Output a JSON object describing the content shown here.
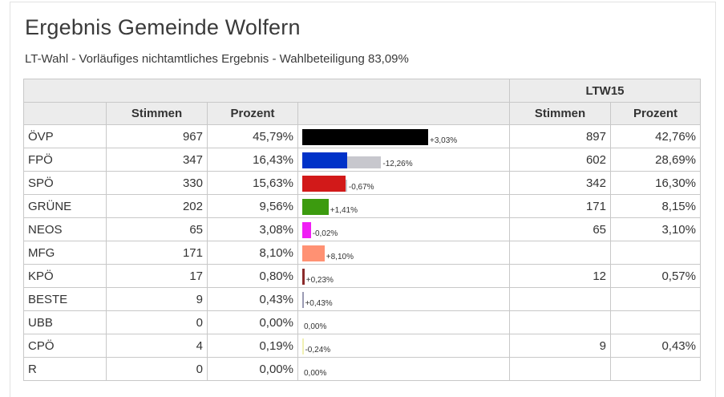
{
  "title": "Ergebnis Gemeinde Wolfern",
  "subtitle": "LT-Wahl - Vorläufiges nichtamtliches Ergebnis - Wahlbeteiligung 83,09%",
  "table": {
    "group_header": "LTW15",
    "headers": {
      "stimmen": "Stimmen",
      "prozent": "Prozent",
      "prev_stimmen": "Stimmen",
      "prev_prozent": "Prozent"
    },
    "rows": [
      {
        "party": "ÖVP",
        "stimmen": "967",
        "prozent": "45,79%",
        "delta": "+3,03%",
        "prev_stimmen": "897",
        "prev_prozent": "42,76%",
        "color": "#000000",
        "pct": 45.79,
        "prev_pct": 42.76
      },
      {
        "party": "FPÖ",
        "stimmen": "347",
        "prozent": "16,43%",
        "delta": "-12,26%",
        "prev_stimmen": "602",
        "prev_prozent": "28,69%",
        "color": "#0032c8",
        "pct": 16.43,
        "prev_pct": 28.69
      },
      {
        "party": "SPÖ",
        "stimmen": "330",
        "prozent": "15,63%",
        "delta": "-0,67%",
        "prev_stimmen": "342",
        "prev_prozent": "16,30%",
        "color": "#d21919",
        "pct": 15.63,
        "prev_pct": 16.3
      },
      {
        "party": "GRÜNE",
        "stimmen": "202",
        "prozent": "9,56%",
        "delta": "+1,41%",
        "prev_stimmen": "171",
        "prev_prozent": "8,15%",
        "color": "#3c9b0f",
        "pct": 9.56,
        "prev_pct": 8.15
      },
      {
        "party": "NEOS",
        "stimmen": "65",
        "prozent": "3,08%",
        "delta": "-0,02%",
        "prev_stimmen": "65",
        "prev_prozent": "3,10%",
        "color": "#f01ef5",
        "pct": 3.08,
        "prev_pct": 3.1
      },
      {
        "party": "MFG",
        "stimmen": "171",
        "prozent": "8,10%",
        "delta": "+8,10%",
        "prev_stimmen": "",
        "prev_prozent": "",
        "color": "#ff9173",
        "pct": 8.1,
        "prev_pct": 0
      },
      {
        "party": "KPÖ",
        "stimmen": "17",
        "prozent": "0,80%",
        "delta": "+0,23%",
        "prev_stimmen": "12",
        "prev_prozent": "0,57%",
        "color": "#8b2a2a",
        "pct": 0.8,
        "prev_pct": 0.57
      },
      {
        "party": "BESTE",
        "stimmen": "9",
        "prozent": "0,43%",
        "delta": "+0,43%",
        "prev_stimmen": "",
        "prev_prozent": "",
        "color": "#9a9ab4",
        "pct": 0.43,
        "prev_pct": 0
      },
      {
        "party": "UBB",
        "stimmen": "0",
        "prozent": "0,00%",
        "delta": "0,00%",
        "prev_stimmen": "",
        "prev_prozent": "",
        "color": "#999999",
        "pct": 0,
        "prev_pct": 0
      },
      {
        "party": "CPÖ",
        "stimmen": "4",
        "prozent": "0,19%",
        "delta": "-0,24%",
        "prev_stimmen": "9",
        "prev_prozent": "0,43%",
        "color": "#f0f0b4",
        "pct": 0.19,
        "prev_pct": 0.43
      },
      {
        "party": "R",
        "stimmen": "0",
        "prozent": "0,00%",
        "delta": "0,00%",
        "prev_stimmen": "",
        "prev_prozent": "",
        "color": "#999999",
        "pct": 0,
        "prev_pct": 0
      }
    ]
  }
}
